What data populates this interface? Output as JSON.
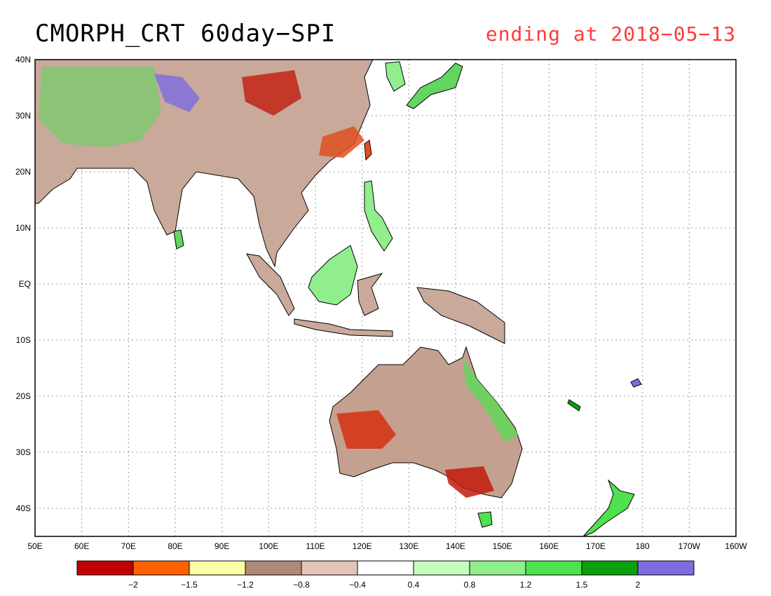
{
  "title": "CMORPH_CRT 60day−SPI",
  "subtitle": "ending at 2018−05−13",
  "subtitle_color": "#ff3b3b",
  "map": {
    "lon_range": [
      50,
      200
    ],
    "lat_range": [
      -45,
      40
    ],
    "lat_ticks": [
      {
        "value": 40,
        "label": "40N"
      },
      {
        "value": 30,
        "label": "30N"
      },
      {
        "value": 20,
        "label": "20N"
      },
      {
        "value": 10,
        "label": "10N"
      },
      {
        "value": 0,
        "label": "EQ"
      },
      {
        "value": -10,
        "label": "10S"
      },
      {
        "value": -20,
        "label": "20S"
      },
      {
        "value": -30,
        "label": "30S"
      },
      {
        "value": -40,
        "label": "40S"
      }
    ],
    "lon_ticks": [
      {
        "value": 50,
        "label": "50E"
      },
      {
        "value": 60,
        "label": "60E"
      },
      {
        "value": 70,
        "label": "70E"
      },
      {
        "value": 80,
        "label": "80E"
      },
      {
        "value": 90,
        "label": "90E"
      },
      {
        "value": 100,
        "label": "100E"
      },
      {
        "value": 110,
        "label": "110E"
      },
      {
        "value": 120,
        "label": "120E"
      },
      {
        "value": 130,
        "label": "130E"
      },
      {
        "value": 140,
        "label": "140E"
      },
      {
        "value": 150,
        "label": "150E"
      },
      {
        "value": 160,
        "label": "160E"
      },
      {
        "value": 170,
        "label": "170E"
      },
      {
        "value": 180,
        "label": "180"
      },
      {
        "value": 190,
        "label": "170W"
      },
      {
        "value": 200,
        "label": "160W"
      }
    ],
    "grid": "dotted"
  },
  "legend": {
    "colors": [
      "#c00000",
      "#ff6000",
      "#ffffa8",
      "#b08878",
      "#e4c4b8",
      "#ffffff",
      "#c4ffc0",
      "#90ee8c",
      "#4ee24e",
      "#0aa00a",
      "#7c6ce0"
    ],
    "labels": [
      "−2",
      "−1.5",
      "−1.2",
      "−0.8",
      "−0.4",
      "0.4",
      "0.8",
      "1.2",
      "1.5",
      "2"
    ]
  },
  "regions": [
    {
      "name": "south-asia",
      "color": "#c8a898"
    },
    {
      "name": "china",
      "color": "#c09c8c"
    },
    {
      "name": "australia",
      "color": "#c4a090"
    }
  ]
}
